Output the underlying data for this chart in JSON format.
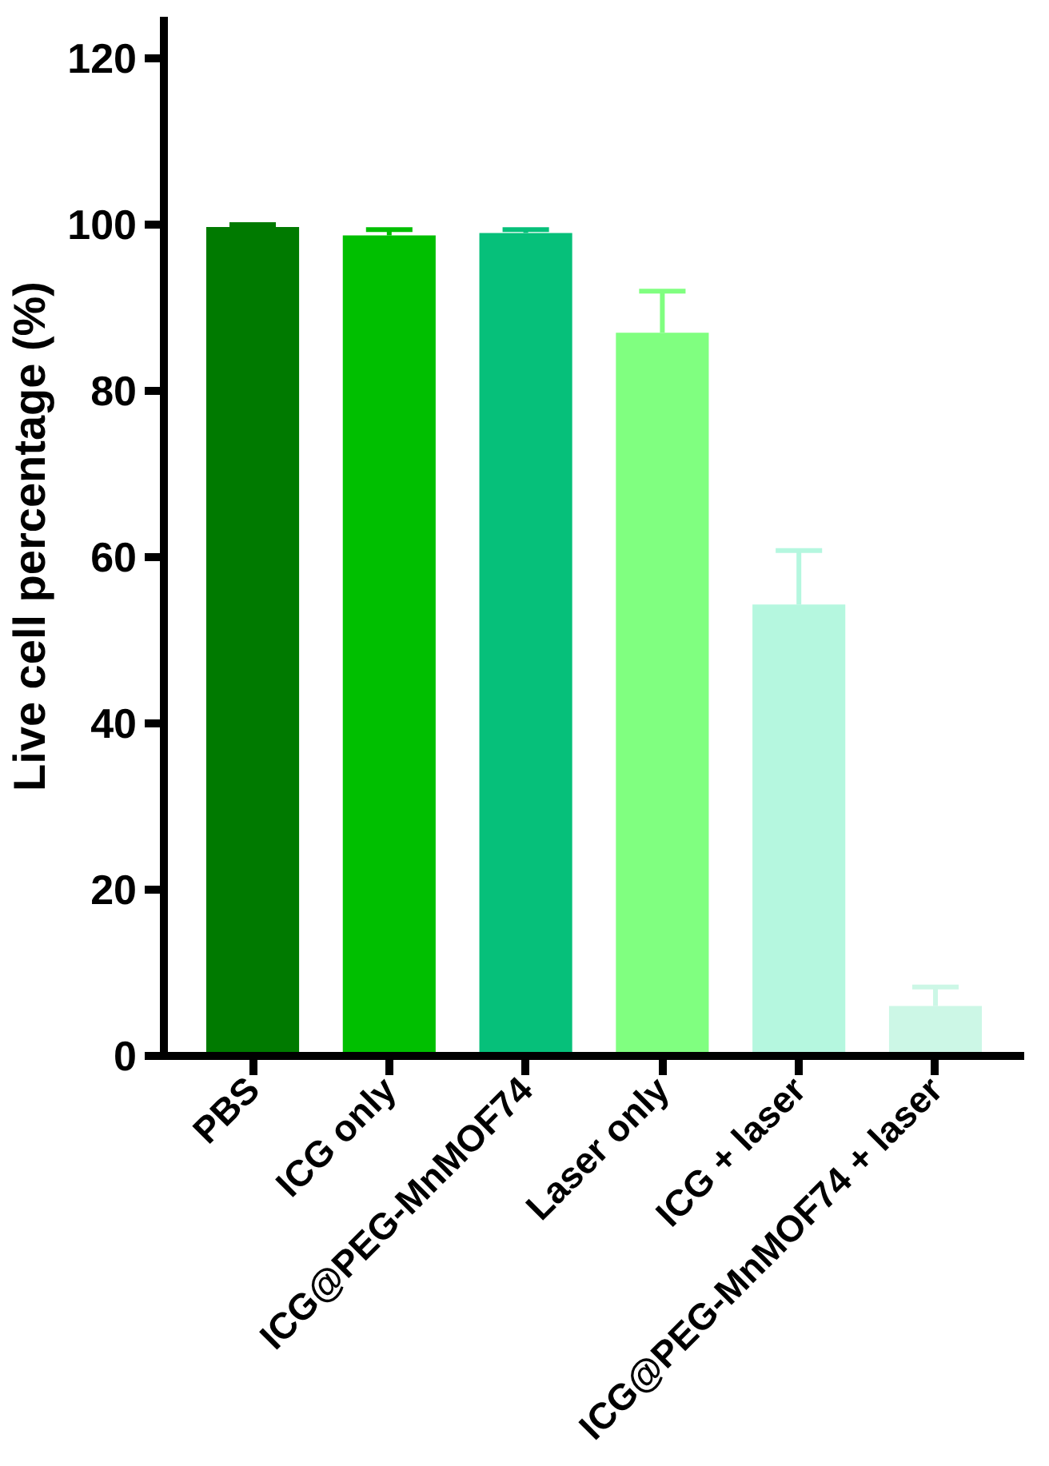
{
  "chart_data": {
    "type": "bar",
    "ylabel": "Live cell percentage (%)",
    "categories": [
      "PBS",
      "ICG only",
      "ICG@PEG-MnMOF74",
      "Laser only",
      "ICG + laser",
      "ICG@PEG-MnMOF74 + laser"
    ],
    "values": [
      99.7,
      98.7,
      99.0,
      87.0,
      54.3,
      6.0
    ],
    "errors": [
      0.3,
      0.7,
      0.4,
      5.0,
      6.5,
      2.3
    ],
    "colors": [
      "#007a00",
      "#00bf00",
      "#06c07a",
      "#80ff80",
      "#b5f7df",
      "#ccf7e6"
    ],
    "ylim": [
      0,
      125
    ],
    "yticks": [
      0,
      20,
      40,
      60,
      80,
      100,
      120
    ],
    "grid": false
  }
}
